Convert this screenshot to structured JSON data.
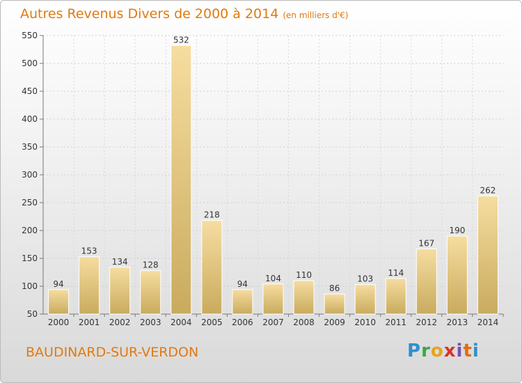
{
  "header": {
    "title": "Autres Revenus Divers de 2000 à 2014",
    "subtitle": "(en milliers d'€)"
  },
  "footer": {
    "place": "BAUDINARD-SUR-VERDON",
    "logo": [
      "P",
      "r",
      "o",
      "x",
      "i",
      "t",
      "i"
    ]
  },
  "colors": {
    "title": "#e07a10",
    "bar_top": "#f6dda0",
    "bar_bottom": "#c9ab5e"
  },
  "chart_data": {
    "type": "bar",
    "title": "Autres Revenus Divers de 2000 à 2014",
    "subtitle": "(en milliers d'€)",
    "categories": [
      "2000",
      "2001",
      "2002",
      "2003",
      "2004",
      "2005",
      "2006",
      "2007",
      "2008",
      "2009",
      "2010",
      "2011",
      "2012",
      "2013",
      "2014"
    ],
    "values": [
      94,
      153,
      134,
      128,
      532,
      218,
      94,
      104,
      110,
      86,
      103,
      114,
      167,
      190,
      262
    ],
    "ylim": [
      50,
      550
    ],
    "yticks": [
      50,
      100,
      150,
      200,
      250,
      300,
      350,
      400,
      450,
      500,
      550
    ],
    "grid": true
  }
}
